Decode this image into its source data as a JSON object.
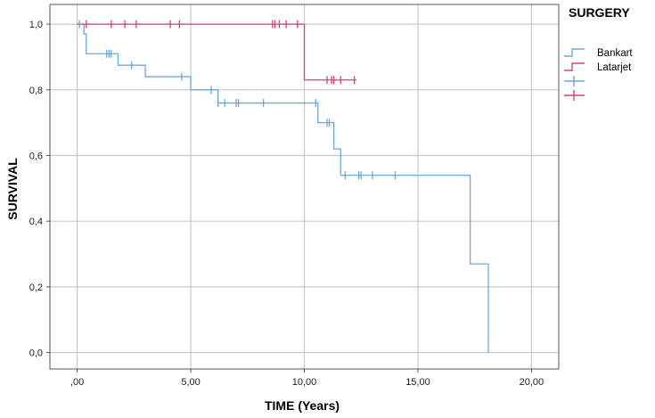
{
  "chart_data": {
    "type": "line",
    "step": true,
    "xlabel": "TIME (Years)",
    "ylabel": "SURVIVAL",
    "xlim": [
      -1.2,
      21.2
    ],
    "ylim": [
      -0.05,
      1.06
    ],
    "xticks": [
      0,
      5,
      10,
      15,
      20
    ],
    "xtick_labels": [
      ",00",
      "5,00",
      "10,00",
      "15,00",
      "20,00"
    ],
    "yticks": [
      0.0,
      0.2,
      0.4,
      0.6,
      0.8,
      1.0
    ],
    "ytick_labels": [
      "0,0",
      "0,2",
      "0,4",
      "0,6",
      "0,8",
      "1,0"
    ],
    "grid": true,
    "legend": {
      "title": "SURGERY",
      "position": "top-right",
      "entries": [
        {
          "label": "Bankart",
          "kind": "line",
          "color": "#6ea6db"
        },
        {
          "label": "Latarjet",
          "kind": "line",
          "color": "#d0476b"
        },
        {
          "label": "",
          "kind": "censor",
          "color": "#6ea6db"
        },
        {
          "label": "",
          "kind": "censor",
          "color": "#d0476b"
        }
      ]
    },
    "series": [
      {
        "name": "Bankart",
        "color": "#6ea6db",
        "steps": [
          [
            0,
            1.0
          ],
          [
            0.3,
            0.97
          ],
          [
            0.4,
            0.91
          ],
          [
            1.8,
            0.875
          ],
          [
            3.0,
            0.84
          ],
          [
            5.0,
            0.8
          ],
          [
            6.2,
            0.76
          ],
          [
            10.6,
            0.7
          ],
          [
            11.3,
            0.62
          ],
          [
            11.6,
            0.54
          ],
          [
            17.3,
            0.27
          ],
          [
            18.1,
            0.0
          ]
        ],
        "censored": [
          [
            0.1,
            1.0
          ],
          [
            1.3,
            0.91
          ],
          [
            1.4,
            0.91
          ],
          [
            1.5,
            0.91
          ],
          [
            2.4,
            0.875
          ],
          [
            4.6,
            0.84
          ],
          [
            5.9,
            0.8
          ],
          [
            6.2,
            0.76
          ],
          [
            6.5,
            0.76
          ],
          [
            7.0,
            0.76
          ],
          [
            7.1,
            0.76
          ],
          [
            8.2,
            0.76
          ],
          [
            10.5,
            0.76
          ],
          [
            11.0,
            0.7
          ],
          [
            11.1,
            0.7
          ],
          [
            11.8,
            0.54
          ],
          [
            12.4,
            0.54
          ],
          [
            12.5,
            0.54
          ],
          [
            13.0,
            0.54
          ],
          [
            14.0,
            0.54
          ]
        ]
      },
      {
        "name": "Latarjet",
        "color": "#d0476b",
        "steps": [
          [
            0,
            1.0
          ],
          [
            10.0,
            0.83
          ]
        ],
        "end_x": 12.3,
        "censored": [
          [
            0.4,
            1.0
          ],
          [
            1.5,
            1.0
          ],
          [
            2.1,
            1.0
          ],
          [
            2.6,
            1.0
          ],
          [
            4.1,
            1.0
          ],
          [
            4.5,
            1.0
          ],
          [
            8.6,
            1.0
          ],
          [
            8.7,
            1.0
          ],
          [
            8.9,
            1.0
          ],
          [
            9.2,
            1.0
          ],
          [
            9.7,
            1.0
          ],
          [
            11.0,
            0.83
          ],
          [
            11.2,
            0.83
          ],
          [
            11.3,
            0.83
          ],
          [
            11.6,
            0.83
          ],
          [
            12.2,
            0.83
          ]
        ]
      }
    ]
  }
}
